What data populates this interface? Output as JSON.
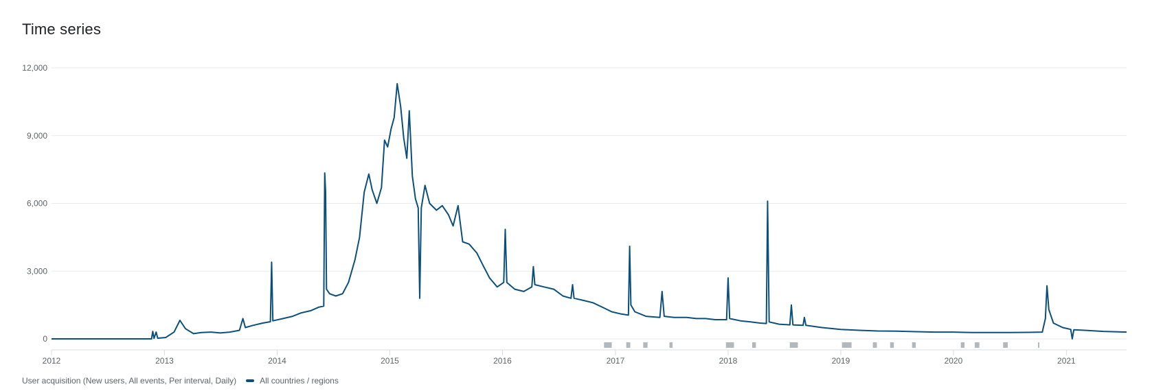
{
  "page": {
    "title": "Time series"
  },
  "legend": {
    "metric_label": "User acquisition (New users, All events, Per interval, Daily)",
    "series_label": "All countries / regions"
  },
  "colors": {
    "series": "#0b4f7c",
    "grid": "#e8eaed",
    "axis_text": "#5f6368",
    "annotation": "#9aa0a6"
  },
  "chart_data": {
    "type": "line",
    "x_type": "date",
    "xlim": [
      "2012-01-01",
      "2021-07-15"
    ],
    "ylim": [
      0,
      12000
    ],
    "yticks": [
      0,
      3000,
      6000,
      9000,
      12000
    ],
    "ytick_labels": [
      "0",
      "3,000",
      "6,000",
      "9,000",
      "12,000"
    ],
    "xticks": [
      "2012-01-01",
      "2013-01-01",
      "2014-01-01",
      "2015-01-01",
      "2016-01-01",
      "2017-01-01",
      "2018-01-01",
      "2019-01-01",
      "2020-01-01",
      "2021-01-01"
    ],
    "xtick_labels": [
      "2012",
      "2013",
      "2014",
      "2015",
      "2016",
      "2017",
      "2018",
      "2019",
      "2020",
      "2021"
    ],
    "grid": true,
    "legend_position": "bottom-left",
    "series": [
      {
        "name": "All countries / regions",
        "points": [
          [
            "2012-01-01",
            0
          ],
          [
            "2012-11-20",
            0
          ],
          [
            "2012-11-24",
            330
          ],
          [
            "2012-11-28",
            20
          ],
          [
            "2012-12-05",
            300
          ],
          [
            "2012-12-10",
            30
          ],
          [
            "2013-01-05",
            60
          ],
          [
            "2013-02-01",
            300
          ],
          [
            "2013-02-20",
            820
          ],
          [
            "2013-03-10",
            450
          ],
          [
            "2013-04-05",
            230
          ],
          [
            "2013-05-01",
            280
          ],
          [
            "2013-06-01",
            300
          ],
          [
            "2013-07-01",
            260
          ],
          [
            "2013-08-01",
            300
          ],
          [
            "2013-09-01",
            380
          ],
          [
            "2013-09-12",
            900
          ],
          [
            "2013-09-20",
            500
          ],
          [
            "2013-10-15",
            600
          ],
          [
            "2013-11-15",
            700
          ],
          [
            "2013-12-10",
            760
          ],
          [
            "2013-12-14",
            3400
          ],
          [
            "2013-12-18",
            800
          ],
          [
            "2014-01-20",
            900
          ],
          [
            "2014-02-20",
            1000
          ],
          [
            "2014-03-20",
            1150
          ],
          [
            "2014-04-20",
            1250
          ],
          [
            "2014-05-15",
            1400
          ],
          [
            "2014-06-01",
            1450
          ],
          [
            "2014-06-04",
            7350
          ],
          [
            "2014-06-07",
            6500
          ],
          [
            "2014-06-10",
            2200
          ],
          [
            "2014-06-20",
            2000
          ],
          [
            "2014-07-10",
            1900
          ],
          [
            "2014-08-01",
            2000
          ],
          [
            "2014-08-20",
            2500
          ],
          [
            "2014-09-10",
            3500
          ],
          [
            "2014-09-25",
            4500
          ],
          [
            "2014-10-10",
            6500
          ],
          [
            "2014-10-25",
            7300
          ],
          [
            "2014-11-05",
            6600
          ],
          [
            "2014-11-20",
            6000
          ],
          [
            "2014-12-05",
            6700
          ],
          [
            "2014-12-15",
            8800
          ],
          [
            "2014-12-25",
            8500
          ],
          [
            "2015-01-05",
            9300
          ],
          [
            "2015-01-15",
            9800
          ],
          [
            "2015-01-25",
            11300
          ],
          [
            "2015-02-05",
            10300
          ],
          [
            "2015-02-15",
            8900
          ],
          [
            "2015-02-25",
            8000
          ],
          [
            "2015-03-05",
            10100
          ],
          [
            "2015-03-15",
            7200
          ],
          [
            "2015-03-25",
            6200
          ],
          [
            "2015-04-03",
            5800
          ],
          [
            "2015-04-08",
            1800
          ],
          [
            "2015-04-13",
            5800
          ],
          [
            "2015-04-25",
            6800
          ],
          [
            "2015-05-10",
            6000
          ],
          [
            "2015-06-01",
            5700
          ],
          [
            "2015-06-20",
            5900
          ],
          [
            "2015-07-10",
            5500
          ],
          [
            "2015-07-25",
            5000
          ],
          [
            "2015-08-10",
            5900
          ],
          [
            "2015-08-25",
            4300
          ],
          [
            "2015-09-15",
            4200
          ],
          [
            "2015-10-10",
            3800
          ],
          [
            "2015-11-01",
            3200
          ],
          [
            "2015-11-20",
            2700
          ],
          [
            "2015-12-15",
            2300
          ],
          [
            "2016-01-05",
            2500
          ],
          [
            "2016-01-10",
            4850
          ],
          [
            "2016-01-15",
            2500
          ],
          [
            "2016-02-10",
            2200
          ],
          [
            "2016-03-10",
            2100
          ],
          [
            "2016-04-05",
            2300
          ],
          [
            "2016-04-10",
            3200
          ],
          [
            "2016-04-15",
            2400
          ],
          [
            "2016-05-15",
            2300
          ],
          [
            "2016-06-15",
            2200
          ],
          [
            "2016-07-15",
            1900
          ],
          [
            "2016-08-10",
            1800
          ],
          [
            "2016-08-15",
            2400
          ],
          [
            "2016-08-20",
            1800
          ],
          [
            "2016-09-20",
            1700
          ],
          [
            "2016-10-20",
            1600
          ],
          [
            "2016-11-20",
            1400
          ],
          [
            "2016-12-20",
            1200
          ],
          [
            "2017-01-20",
            1100
          ],
          [
            "2017-02-12",
            1050
          ],
          [
            "2017-02-16",
            4100
          ],
          [
            "2017-02-20",
            1500
          ],
          [
            "2017-03-05",
            1200
          ],
          [
            "2017-04-10",
            1000
          ],
          [
            "2017-05-25",
            950
          ],
          [
            "2017-06-01",
            2100
          ],
          [
            "2017-06-08",
            1000
          ],
          [
            "2017-07-10",
            950
          ],
          [
            "2017-08-20",
            950
          ],
          [
            "2017-09-20",
            900
          ],
          [
            "2017-10-20",
            900
          ],
          [
            "2017-11-20",
            850
          ],
          [
            "2017-12-27",
            850
          ],
          [
            "2018-01-01",
            2700
          ],
          [
            "2018-01-06",
            900
          ],
          [
            "2018-02-10",
            800
          ],
          [
            "2018-03-15",
            750
          ],
          [
            "2018-04-15",
            700
          ],
          [
            "2018-05-05",
            680
          ],
          [
            "2018-05-09",
            6100
          ],
          [
            "2018-05-14",
            750
          ],
          [
            "2018-06-15",
            650
          ],
          [
            "2018-07-20",
            620
          ],
          [
            "2018-07-25",
            1500
          ],
          [
            "2018-07-30",
            620
          ],
          [
            "2018-09-01",
            600
          ],
          [
            "2018-09-05",
            950
          ],
          [
            "2018-09-10",
            600
          ],
          [
            "2018-11-01",
            500
          ],
          [
            "2019-01-01",
            420
          ],
          [
            "2019-03-01",
            380
          ],
          [
            "2019-05-01",
            350
          ],
          [
            "2019-07-01",
            340
          ],
          [
            "2019-09-01",
            320
          ],
          [
            "2019-11-01",
            300
          ],
          [
            "2020-01-01",
            300
          ],
          [
            "2020-03-01",
            280
          ],
          [
            "2020-05-01",
            280
          ],
          [
            "2020-07-01",
            280
          ],
          [
            "2020-09-01",
            290
          ],
          [
            "2020-10-15",
            300
          ],
          [
            "2020-10-25",
            900
          ],
          [
            "2020-10-30",
            2350
          ],
          [
            "2020-11-05",
            1300
          ],
          [
            "2020-11-20",
            700
          ],
          [
            "2020-12-20",
            500
          ],
          [
            "2021-01-15",
            420
          ],
          [
            "2021-01-20",
            0
          ],
          [
            "2021-01-25",
            400
          ],
          [
            "2021-03-01",
            380
          ],
          [
            "2021-05-01",
            330
          ],
          [
            "2021-07-15",
            300
          ]
        ]
      }
    ],
    "annotations": [
      [
        "2016-11-25",
        "2016-12-20"
      ],
      [
        "2017-02-05",
        "2017-02-18"
      ],
      [
        "2017-04-01",
        "2017-04-15"
      ],
      [
        "2017-06-25",
        "2017-07-05"
      ],
      [
        "2017-12-25",
        "2018-01-20"
      ],
      [
        "2018-03-20",
        "2018-04-01"
      ],
      [
        "2018-07-20",
        "2018-08-15"
      ],
      [
        "2019-01-05",
        "2019-02-05"
      ],
      [
        "2019-04-15",
        "2019-04-28"
      ],
      [
        "2019-06-10",
        "2019-06-22"
      ],
      [
        "2019-08-20",
        "2019-09-01"
      ],
      [
        "2020-01-25",
        "2020-02-06"
      ],
      [
        "2020-03-10",
        "2020-03-25"
      ],
      [
        "2020-06-10",
        "2020-06-25"
      ],
      [
        "2020-10-01",
        "2020-10-04"
      ]
    ]
  }
}
